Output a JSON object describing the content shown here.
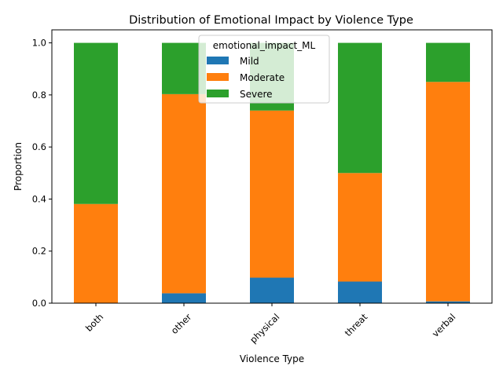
{
  "chart_data": {
    "type": "bar",
    "stacked": true,
    "title": "Distribution of Emotional Impact by Violence Type",
    "xlabel": "Violence Type",
    "ylabel": "Proportion",
    "ylim": [
      0,
      1.05
    ],
    "yticks": [
      "0.0",
      "0.2",
      "0.4",
      "0.6",
      "0.8",
      "1.0"
    ],
    "categories": [
      "both",
      "other",
      "physical",
      "threat",
      "verbal"
    ],
    "legend": {
      "title": "emotional_impact_ML",
      "placement": "top-center"
    },
    "grid": false,
    "series": [
      {
        "name": "Mild",
        "color": "#1f77b4",
        "values": [
          0.0,
          0.038,
          0.098,
          0.083,
          0.007
        ]
      },
      {
        "name": "Moderate",
        "color": "#ff7f0e",
        "values": [
          0.381,
          0.765,
          0.642,
          0.417,
          0.843
        ]
      },
      {
        "name": "Severe",
        "color": "#2ca02c",
        "values": [
          0.619,
          0.197,
          0.26,
          0.5,
          0.15
        ]
      }
    ]
  }
}
